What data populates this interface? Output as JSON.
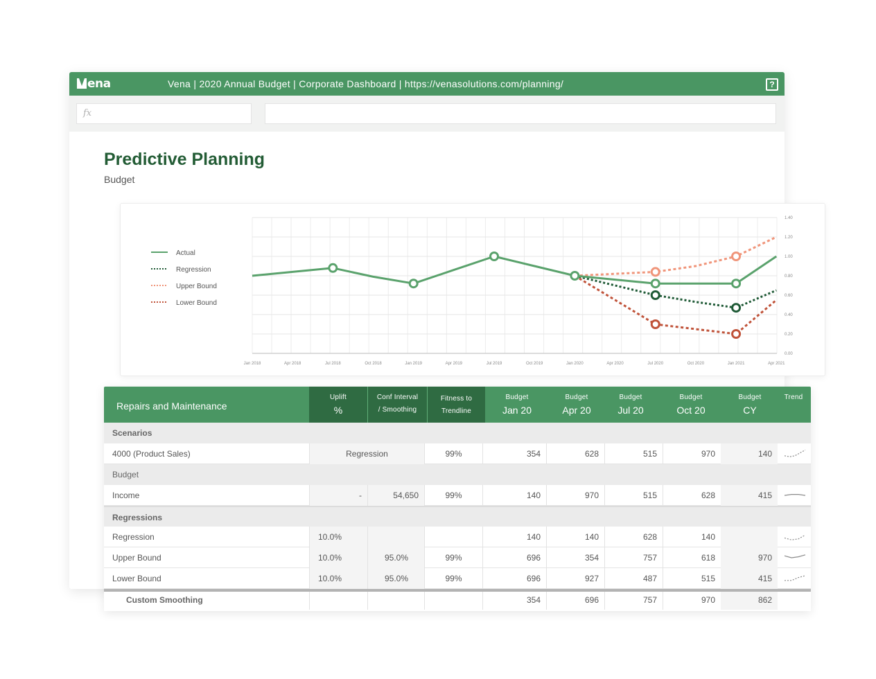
{
  "window": {
    "logo_text": "ena",
    "title": "Vena | 2020 Annual Budget | Corporate Dashboard | https://venasolutions.com/planning/",
    "help_glyph": "?",
    "fx_placeholder": "fx"
  },
  "page": {
    "title": "Predictive Planning",
    "subtitle": "Budget"
  },
  "colors": {
    "brand_green": "#4a9663",
    "header_dark": "#2f6b42",
    "actual": "#5aa26c",
    "regression": "#1f5a36",
    "upper_bound": "#f0957a",
    "lower_bound": "#c0533a"
  },
  "chart_data": {
    "type": "line",
    "x": [
      "Jan 2018",
      "Apr 2018",
      "Jul 2018",
      "Oct 2018",
      "Jan 2019",
      "Apr 2019",
      "Jul 2019",
      "Oct 2019",
      "Jan 2020",
      "Apr 2020",
      "Jul 2020",
      "Oct 2020",
      "Jan 2021",
      "Apr 2021"
    ],
    "yticks": [
      "0.00",
      "0.20",
      "0.40",
      "0.60",
      "0.80",
      "1.00",
      "1.20",
      "1.40"
    ],
    "ylim": [
      0,
      1.4
    ],
    "legend": {
      "placement": "left",
      "entries": [
        "Actual",
        "Regression",
        "Upper Bound",
        "Lower Bound"
      ]
    },
    "grid": true,
    "series": [
      {
        "name": "Actual",
        "style": "solid",
        "values": [
          0.8,
          0.84,
          0.88,
          0.79,
          0.72,
          0.86,
          1.0,
          0.9,
          0.8,
          0.76,
          0.72,
          0.72,
          0.72,
          1.0
        ],
        "markers": [
          2,
          4,
          6,
          8,
          10,
          12
        ]
      },
      {
        "name": "Regression",
        "style": "dotted",
        "values": [
          null,
          null,
          null,
          null,
          null,
          null,
          null,
          null,
          0.8,
          0.7,
          0.6,
          0.53,
          0.47,
          0.65
        ],
        "markers": [
          10,
          12
        ]
      },
      {
        "name": "Upper Bound",
        "style": "dashed",
        "values": [
          null,
          null,
          null,
          null,
          null,
          null,
          null,
          null,
          0.8,
          0.82,
          0.84,
          0.9,
          1.0,
          1.2
        ],
        "markers": [
          10,
          12
        ]
      },
      {
        "name": "Lower Bound",
        "style": "dashed",
        "values": [
          null,
          null,
          null,
          null,
          null,
          null,
          null,
          null,
          0.8,
          0.55,
          0.3,
          0.25,
          0.2,
          0.55
        ],
        "markers": [
          10,
          12
        ]
      }
    ]
  },
  "table": {
    "title": "Repairs and Maintenance",
    "columns": [
      {
        "top": "Uplift",
        "bottom": "%"
      },
      {
        "top": "Conf Interval",
        "bottom": "/ Smoothing"
      },
      {
        "top": "Fitness to",
        "bottom": "Trendline"
      },
      {
        "top": "Budget",
        "bottom": "Jan 20"
      },
      {
        "top": "Budget",
        "bottom": "Apr 20"
      },
      {
        "top": "Budget",
        "bottom": "Jul 20"
      },
      {
        "top": "Budget",
        "bottom": "Oct 20"
      },
      {
        "top": "Budget",
        "bottom": "CY"
      },
      {
        "top": "Trend",
        "bottom": ""
      }
    ],
    "sections": {
      "scenarios": "Scenarios",
      "budget": "Budget",
      "regressions": "Regressions"
    },
    "rows": {
      "product_sales": {
        "label": "4000 (Product Sales)",
        "method": "Regression",
        "fitness": "99%",
        "values": [
          "354",
          "628",
          "515",
          "970",
          "140"
        ],
        "trend": [
          0.3,
          0.2,
          0.3,
          0.6,
          0.9
        ]
      },
      "income": {
        "label": "Income",
        "uplift": "-",
        "conf": "54,650",
        "fitness": "99%",
        "values": [
          "140",
          "970",
          "515",
          "628",
          "415"
        ],
        "trend": [
          0.5,
          0.6,
          0.6,
          0.5
        ]
      },
      "regression": {
        "label": "Regression",
        "uplift": "10.0%",
        "values": [
          "140",
          "140",
          "628",
          "140"
        ],
        "trend": [
          0.4,
          0.2,
          0.3,
          0.7
        ]
      },
      "upper_bound": {
        "label": "Upper Bound",
        "uplift": "10.0%",
        "conf": "95.0%",
        "fitness": "99%",
        "values": [
          "696",
          "354",
          "757",
          "618",
          "970"
        ],
        "trend": [
          0.7,
          0.5,
          0.6,
          0.8
        ]
      },
      "lower_bound": {
        "label": "Lower Bound",
        "uplift": "10.0%",
        "conf": "95.0%",
        "fitness": "99%",
        "values": [
          "696",
          "927",
          "487",
          "515",
          "415"
        ],
        "trend": [
          0.3,
          0.3,
          0.6,
          0.8
        ]
      },
      "custom_smoothing": {
        "label": "Custom Smoothing",
        "values": [
          "354",
          "696",
          "757",
          "970",
          "862"
        ]
      }
    }
  }
}
